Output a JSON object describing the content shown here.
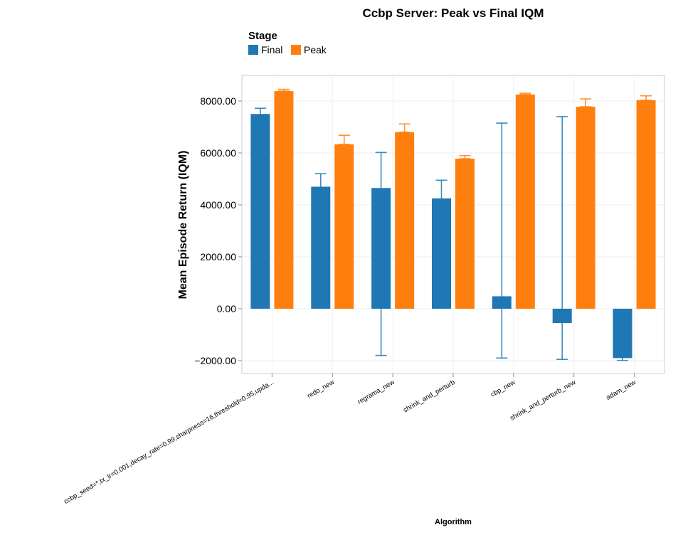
{
  "chart_data": {
    "type": "bar",
    "title": "Ccbp Server: Peak vs Final IQM",
    "xlabel": "Algorithm",
    "ylabel": "Mean Episode Return (IQM)",
    "ylim": [
      -2500,
      8700
    ],
    "yticks": [
      -2000,
      0,
      2000,
      4000,
      6000,
      8000
    ],
    "ytick_labels": [
      "−2000.00",
      "0.00",
      "2000.00",
      "4000.00",
      "6000.00",
      "8000.00"
    ],
    "grid": true,
    "legend": {
      "title": "Stage",
      "position": "top-left"
    },
    "categories": [
      "ccbp_seed=*,tx_lr=0.001,decay_rate=0.99,sharpness=16,threshold=0.95,upda...",
      "redo_new",
      "regrama_new",
      "shrink_and_perturb",
      "cbp_new",
      "shrink_and_perturb_new",
      "adam_new"
    ],
    "series": [
      {
        "name": "Final",
        "color": "#1f77b4",
        "values": [
          7500,
          4700,
          4650,
          4250,
          480,
          -550,
          -1900
        ],
        "err_low": [
          7250,
          4200,
          -1800,
          3500,
          -1900,
          -1950,
          -1990
        ],
        "err_high": [
          7720,
          5200,
          6020,
          4950,
          7150,
          7400,
          -1830
        ]
      },
      {
        "name": "Peak",
        "color": "#ff7f0e",
        "values": [
          8380,
          6330,
          6800,
          5780,
          8250,
          7780,
          8030
        ],
        "err_low": [
          8380,
          6330,
          6800,
          5780,
          8250,
          7780,
          8030
        ],
        "err_high": [
          8450,
          6680,
          7120,
          5900,
          8300,
          8080,
          8200
        ]
      }
    ]
  }
}
